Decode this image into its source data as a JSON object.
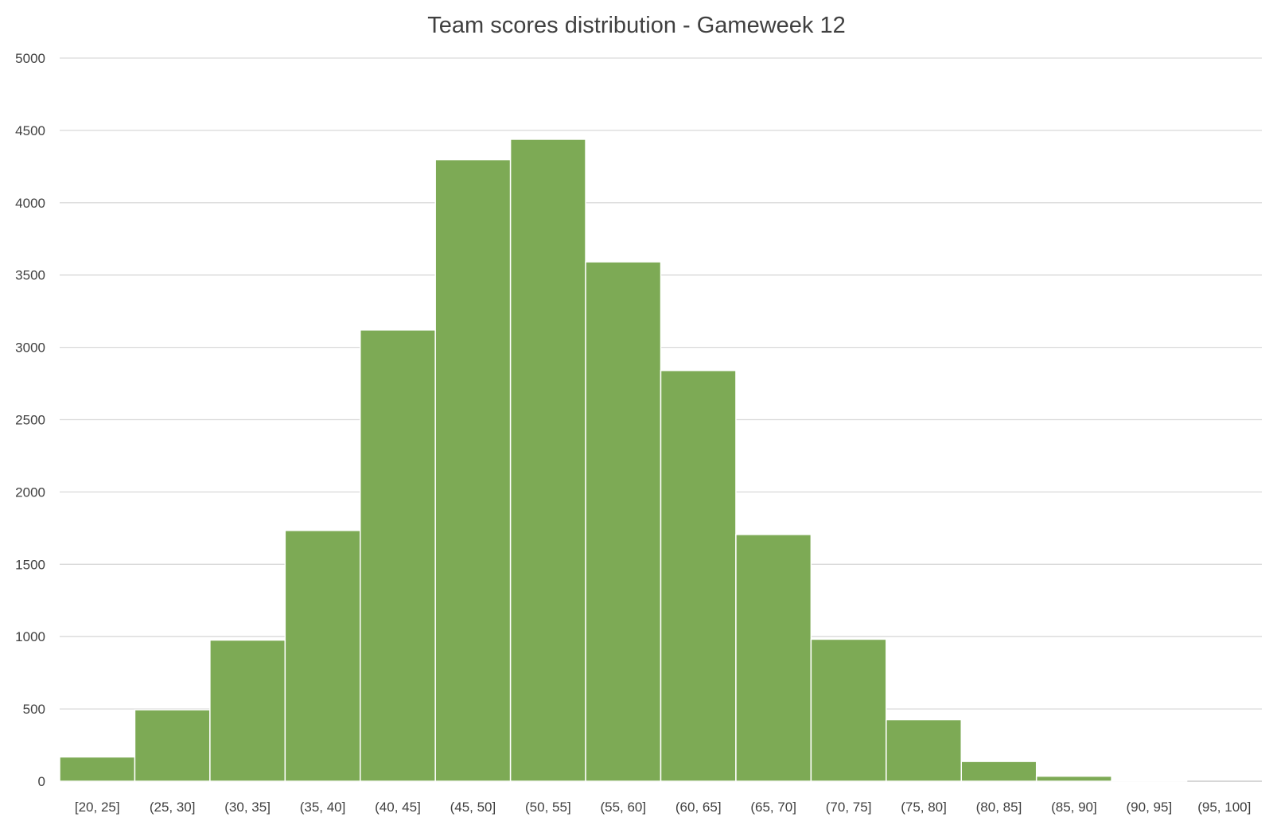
{
  "chart_data": {
    "type": "bar",
    "title": "Team scores distribution - Gameweek 12",
    "xlabel": "",
    "ylabel": "",
    "categories": [
      "[20, 25]",
      "(25, 30]",
      "(30, 35]",
      "(35, 40]",
      "(40, 45]",
      "(45, 50]",
      "(50, 55]",
      "(55, 60]",
      "(60, 65]",
      "(65, 70]",
      "(70, 75]",
      "(75, 80]",
      "(80, 85]",
      "(85, 90]",
      "(90, 95]",
      "(95, 100]"
    ],
    "values": [
      168,
      494,
      976,
      1734,
      3120,
      4298,
      4439,
      3591,
      2840,
      1706,
      982,
      426,
      137,
      35,
      4,
      0
    ],
    "ylim": [
      0,
      5000
    ],
    "yticks": [
      0,
      500,
      1000,
      1500,
      2000,
      2500,
      3000,
      3500,
      4000,
      4500,
      5000
    ],
    "grid": true,
    "legend": "none",
    "bar_color": "#7DAA55"
  }
}
